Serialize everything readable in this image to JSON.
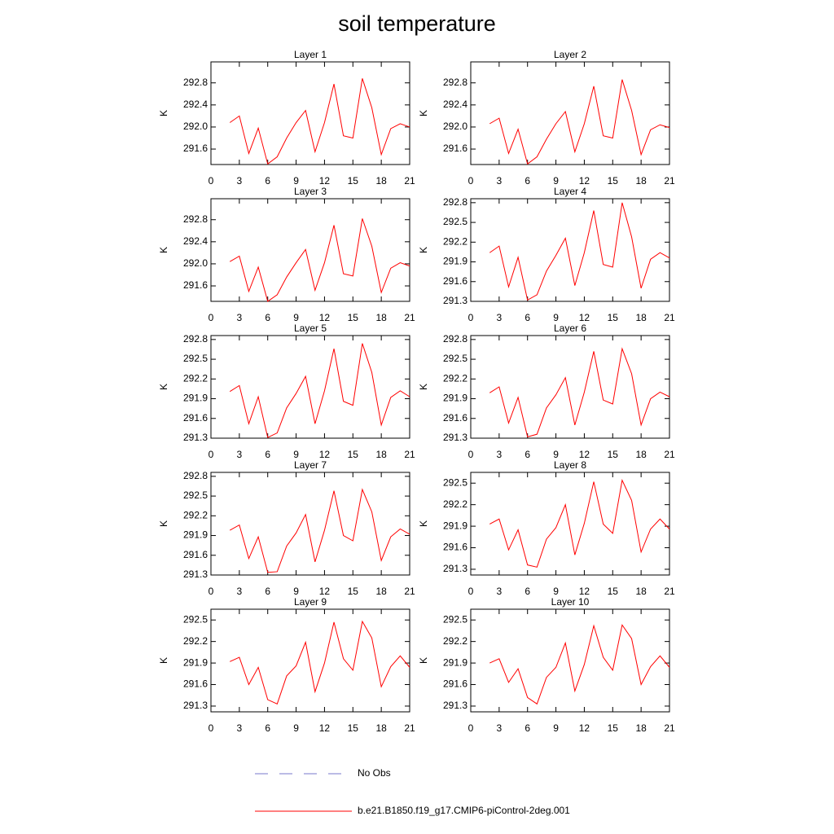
{
  "title": "soil temperature",
  "legend": [
    {
      "name": "No Obs",
      "color": "#7777cc",
      "dashed": true
    },
    {
      "name": "b.e21.B1850.f19_g17.CMIP6-piControl-2deg.001",
      "color": "#ff0000",
      "dashed": false
    }
  ],
  "chart_data": [
    {
      "type": "line",
      "title": "Layer 1",
      "ylabel": "K",
      "color": "#ff0000",
      "x": [
        2,
        3,
        4,
        5,
        6,
        7,
        8,
        9,
        10,
        11,
        12,
        13,
        14,
        15,
        16,
        17,
        18,
        19,
        20,
        21
      ],
      "values": [
        292.08,
        292.2,
        291.52,
        291.98,
        291.33,
        291.46,
        291.8,
        292.08,
        292.3,
        291.55,
        292.08,
        292.78,
        291.84,
        291.8,
        292.88,
        292.35,
        291.5,
        291.97,
        292.06,
        292.0
      ],
      "xlim": [
        0,
        21
      ],
      "xticks": [
        0,
        3,
        6,
        9,
        12,
        15,
        18,
        21
      ],
      "ylim": [
        291.32,
        293.18
      ],
      "yticks": [
        291.6,
        {
          "value": 292,
          "label": "292.0"
        },
        292.4,
        292.8
      ]
    },
    {
      "type": "line",
      "title": "Layer 2",
      "ylabel": "K",
      "color": "#ff0000",
      "x": [
        2,
        3,
        4,
        5,
        6,
        7,
        8,
        9,
        10,
        11,
        12,
        13,
        14,
        15,
        16,
        17,
        18,
        19,
        20,
        21
      ],
      "values": [
        292.06,
        292.16,
        291.52,
        291.96,
        291.33,
        291.46,
        291.78,
        292.06,
        292.28,
        291.55,
        292.06,
        292.74,
        291.84,
        291.8,
        292.86,
        292.3,
        291.5,
        291.95,
        292.04,
        291.99
      ],
      "xlim": [
        0,
        21
      ],
      "xticks": [
        0,
        3,
        6,
        9,
        12,
        15,
        18,
        21
      ],
      "ylim": [
        291.32,
        293.18
      ],
      "yticks": [
        291.6,
        {
          "value": 292,
          "label": "292.0"
        },
        292.4,
        292.8
      ]
    },
    {
      "type": "line",
      "title": "Layer 3",
      "ylabel": "K",
      "color": "#ff0000",
      "x": [
        2,
        3,
        4,
        5,
        6,
        7,
        8,
        9,
        10,
        11,
        12,
        13,
        14,
        15,
        16,
        17,
        18,
        19,
        20,
        21
      ],
      "values": [
        292.04,
        292.14,
        291.5,
        291.94,
        291.32,
        291.44,
        291.76,
        292.02,
        292.26,
        291.52,
        292.02,
        292.7,
        291.82,
        291.78,
        292.82,
        292.32,
        291.48,
        291.92,
        292.02,
        291.96
      ],
      "xlim": [
        0,
        21
      ],
      "xticks": [
        0,
        3,
        6,
        9,
        12,
        15,
        18,
        21
      ],
      "ylim": [
        291.32,
        293.18
      ],
      "yticks": [
        291.6,
        {
          "value": 292,
          "label": "292.0"
        },
        292.4,
        292.8
      ]
    },
    {
      "type": "line",
      "title": "Layer 4",
      "ylabel": "K",
      "color": "#ff0000",
      "x": [
        2,
        3,
        4,
        5,
        6,
        7,
        8,
        9,
        10,
        11,
        12,
        13,
        14,
        15,
        16,
        17,
        18,
        19,
        20,
        21
      ],
      "values": [
        292.04,
        292.14,
        291.52,
        291.97,
        291.32,
        291.4,
        291.76,
        292.0,
        292.26,
        291.54,
        292.04,
        292.68,
        291.86,
        291.82,
        292.8,
        292.28,
        291.5,
        291.94,
        292.04,
        291.96
      ],
      "xlim": [
        0,
        21
      ],
      "xticks": [
        0,
        3,
        6,
        9,
        12,
        15,
        18,
        21
      ],
      "ylim": [
        291.3,
        292.86
      ],
      "yticks": [
        291.3,
        291.6,
        291.9,
        292.2,
        292.5,
        292.8
      ]
    },
    {
      "type": "line",
      "title": "Layer 5",
      "ylabel": "K",
      "color": "#ff0000",
      "x": [
        2,
        3,
        4,
        5,
        6,
        7,
        8,
        9,
        10,
        11,
        12,
        13,
        14,
        15,
        16,
        17,
        18,
        19,
        20,
        21
      ],
      "values": [
        292.01,
        292.1,
        291.52,
        291.93,
        291.31,
        291.38,
        291.76,
        291.98,
        292.24,
        291.52,
        292.02,
        292.66,
        291.86,
        291.8,
        292.74,
        292.3,
        291.5,
        291.92,
        292.02,
        291.93
      ],
      "xlim": [
        0,
        21
      ],
      "xticks": [
        0,
        3,
        6,
        9,
        12,
        15,
        18,
        21
      ],
      "ylim": [
        291.3,
        292.86
      ],
      "yticks": [
        291.3,
        291.6,
        291.9,
        292.2,
        292.5,
        292.8
      ]
    },
    {
      "type": "line",
      "title": "Layer 6",
      "ylabel": "K",
      "color": "#ff0000",
      "x": [
        2,
        3,
        4,
        5,
        6,
        7,
        8,
        9,
        10,
        11,
        12,
        13,
        14,
        15,
        16,
        17,
        18,
        19,
        20,
        21
      ],
      "values": [
        291.99,
        292.08,
        291.53,
        291.92,
        291.32,
        291.36,
        291.76,
        291.96,
        292.22,
        291.5,
        292.0,
        292.62,
        291.88,
        291.82,
        292.66,
        292.28,
        291.5,
        291.9,
        292.0,
        291.93
      ],
      "xlim": [
        0,
        21
      ],
      "xticks": [
        0,
        3,
        6,
        9,
        12,
        15,
        18,
        21
      ],
      "ylim": [
        291.3,
        292.86
      ],
      "yticks": [
        291.3,
        291.6,
        291.9,
        292.2,
        292.5,
        292.8
      ]
    },
    {
      "type": "line",
      "title": "Layer 7",
      "ylabel": "K",
      "color": "#ff0000",
      "x": [
        2,
        3,
        4,
        5,
        6,
        7,
        8,
        9,
        10,
        11,
        12,
        13,
        14,
        15,
        16,
        17,
        18,
        19,
        20,
        21
      ],
      "values": [
        291.98,
        292.06,
        291.55,
        291.88,
        291.34,
        291.35,
        291.74,
        291.94,
        292.22,
        291.5,
        291.98,
        292.58,
        291.9,
        291.82,
        292.6,
        292.26,
        291.52,
        291.88,
        292.0,
        291.92
      ],
      "xlim": [
        0,
        21
      ],
      "xticks": [
        0,
        3,
        6,
        9,
        12,
        15,
        18,
        21
      ],
      "ylim": [
        291.3,
        292.86
      ],
      "yticks": [
        291.3,
        291.6,
        291.9,
        292.2,
        292.5,
        292.8
      ]
    },
    {
      "type": "line",
      "title": "Layer 8",
      "ylabel": "K",
      "color": "#ff0000",
      "x": [
        2,
        3,
        4,
        5,
        6,
        7,
        8,
        9,
        10,
        11,
        12,
        13,
        14,
        15,
        16,
        17,
        18,
        19,
        20,
        21
      ],
      "values": [
        291.93,
        292.0,
        291.57,
        291.85,
        291.36,
        291.33,
        291.72,
        291.88,
        292.2,
        291.5,
        291.94,
        292.52,
        291.93,
        291.8,
        292.54,
        292.26,
        291.54,
        291.86,
        292.0,
        291.86
      ],
      "xlim": [
        0,
        21
      ],
      "xticks": [
        0,
        3,
        6,
        9,
        12,
        15,
        18,
        21
      ],
      "ylim": [
        291.22,
        292.65
      ],
      "yticks": [
        291.3,
        291.6,
        291.9,
        292.2,
        292.5
      ]
    },
    {
      "type": "line",
      "title": "Layer 9",
      "ylabel": "K",
      "color": "#ff0000",
      "x": [
        2,
        3,
        4,
        5,
        6,
        7,
        8,
        9,
        10,
        11,
        12,
        13,
        14,
        15,
        16,
        17,
        18,
        19,
        20,
        21
      ],
      "values": [
        291.92,
        291.98,
        291.6,
        291.84,
        291.39,
        291.33,
        291.72,
        291.86,
        292.19,
        291.5,
        291.9,
        292.47,
        291.96,
        291.8,
        292.48,
        292.25,
        291.57,
        291.85,
        292.0,
        291.84
      ],
      "xlim": [
        0,
        21
      ],
      "xticks": [
        0,
        3,
        6,
        9,
        12,
        15,
        18,
        21
      ],
      "ylim": [
        291.22,
        292.65
      ],
      "yticks": [
        291.3,
        291.6,
        291.9,
        292.2,
        292.5
      ]
    },
    {
      "type": "line",
      "title": "Layer 10",
      "ylabel": "K",
      "color": "#ff0000",
      "x": [
        2,
        3,
        4,
        5,
        6,
        7,
        8,
        9,
        10,
        11,
        12,
        13,
        14,
        15,
        16,
        17,
        18,
        19,
        20,
        21
      ],
      "values": [
        291.9,
        291.96,
        291.63,
        291.82,
        291.42,
        291.33,
        291.7,
        291.84,
        292.18,
        291.51,
        291.88,
        292.42,
        291.98,
        291.8,
        292.43,
        292.24,
        291.6,
        291.85,
        292.0,
        291.84
      ],
      "xlim": [
        0,
        21
      ],
      "xticks": [
        0,
        3,
        6,
        9,
        12,
        15,
        18,
        21
      ],
      "ylim": [
        291.22,
        292.65
      ],
      "yticks": [
        291.3,
        291.6,
        291.9,
        292.2,
        292.5
      ]
    }
  ]
}
